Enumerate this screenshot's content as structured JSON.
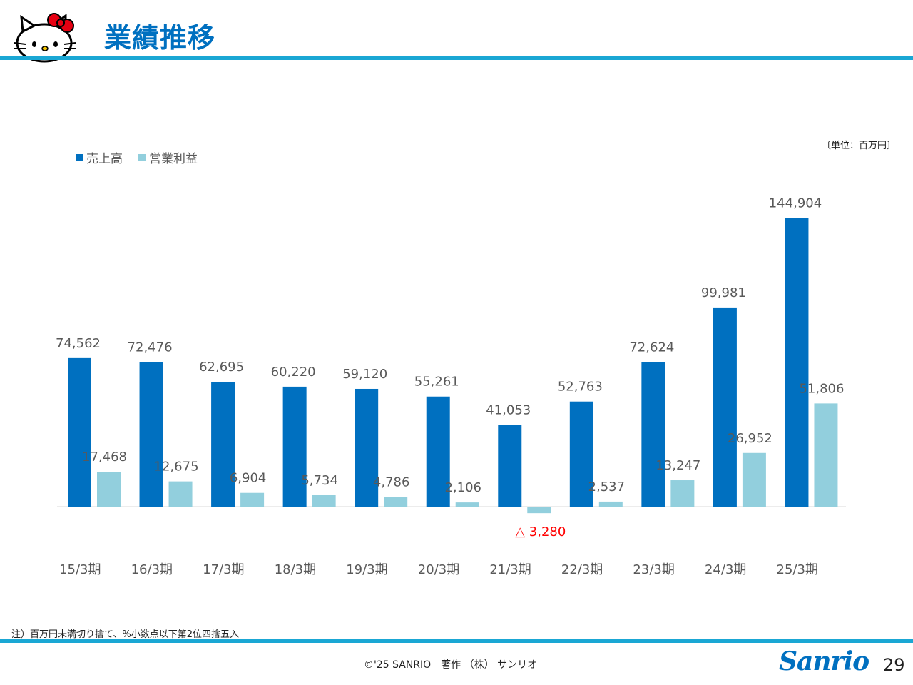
{
  "header": {
    "title": "業績推移"
  },
  "unit_note": "〔単位：百万円〕",
  "legend": [
    {
      "label": "売上高",
      "color": "#0070c0"
    },
    {
      "label": "営業利益",
      "color": "#92cfdd"
    }
  ],
  "chart_data": {
    "type": "bar",
    "categories": [
      "15/3期",
      "16/3期",
      "17/3期",
      "18/3期",
      "19/3期",
      "20/3期",
      "21/3期",
      "22/3期",
      "23/3期",
      "24/3期",
      "25/3期"
    ],
    "series": [
      {
        "name": "売上高",
        "color": "#0070c0",
        "values": [
          74562,
          72476,
          62695,
          60220,
          59120,
          55261,
          41053,
          52763,
          72624,
          99981,
          144904
        ],
        "labels": [
          "74,562",
          "72,476",
          "62,695",
          "60,220",
          "59,120",
          "55,261",
          "41,053",
          "52,763",
          "72,624",
          "99,981",
          "144,904"
        ]
      },
      {
        "name": "営業利益",
        "color": "#92cfdd",
        "values": [
          17468,
          12675,
          6904,
          5734,
          4786,
          2106,
          -3280,
          2537,
          13247,
          26952,
          51806
        ],
        "labels": [
          "17,468",
          "12,675",
          "6,904",
          "5,734",
          "4,786",
          "2,106",
          "△ 3,280",
          "2,537",
          "13,247",
          "26,952",
          "51,806"
        ]
      }
    ],
    "negative_label_color": "#ff0000",
    "ylim": [
      -3500,
      150000
    ],
    "grid": false,
    "legend_position": "top-left"
  },
  "footer": {
    "note": "注）百万円未満切り捨て、%小数点以下第2位四捨五入",
    "copyright": "©'25 SANRIO　著作 （株） サンリオ",
    "brand": "Sanrio",
    "page": "29"
  }
}
